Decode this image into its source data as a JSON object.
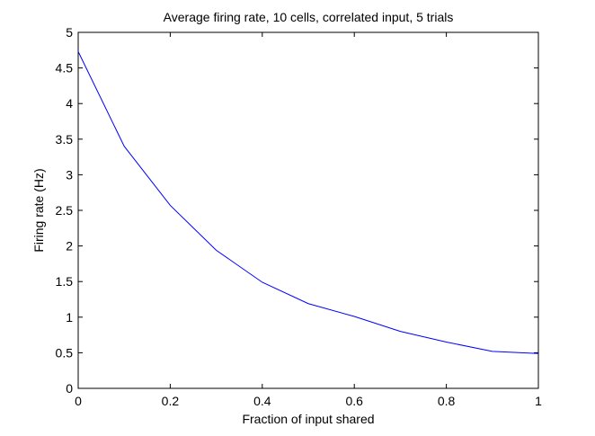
{
  "chart_data": {
    "type": "line",
    "title": "Average firing rate, 10 cells, correlated input, 5 trials",
    "xlabel": "Fraction of input shared",
    "ylabel": "Firing rate (Hz)",
    "xlim": [
      0,
      1
    ],
    "ylim": [
      0,
      5
    ],
    "xticks": [
      0,
      0.2,
      0.4,
      0.6,
      0.8,
      1
    ],
    "xtick_labels": [
      "0",
      "0.2",
      "0.4",
      "0.6",
      "0.8",
      "1"
    ],
    "yticks": [
      0,
      0.5,
      1,
      1.5,
      2,
      2.5,
      3,
      3.5,
      4,
      4.5,
      5
    ],
    "ytick_labels": [
      "0",
      "0.5",
      "1",
      "1.5",
      "2",
      "2.5",
      "3",
      "3.5",
      "4",
      "4.5",
      "5"
    ],
    "grid": false,
    "legend": "none",
    "series": [
      {
        "color": "#0000ff",
        "x": [
          0,
          0.1,
          0.2,
          0.3,
          0.4,
          0.5,
          0.6,
          0.7,
          0.8,
          0.9,
          1.0
        ],
        "y": [
          4.73,
          3.4,
          2.57,
          1.94,
          1.49,
          1.19,
          1.01,
          0.8,
          0.65,
          0.52,
          0.49
        ]
      }
    ]
  }
}
